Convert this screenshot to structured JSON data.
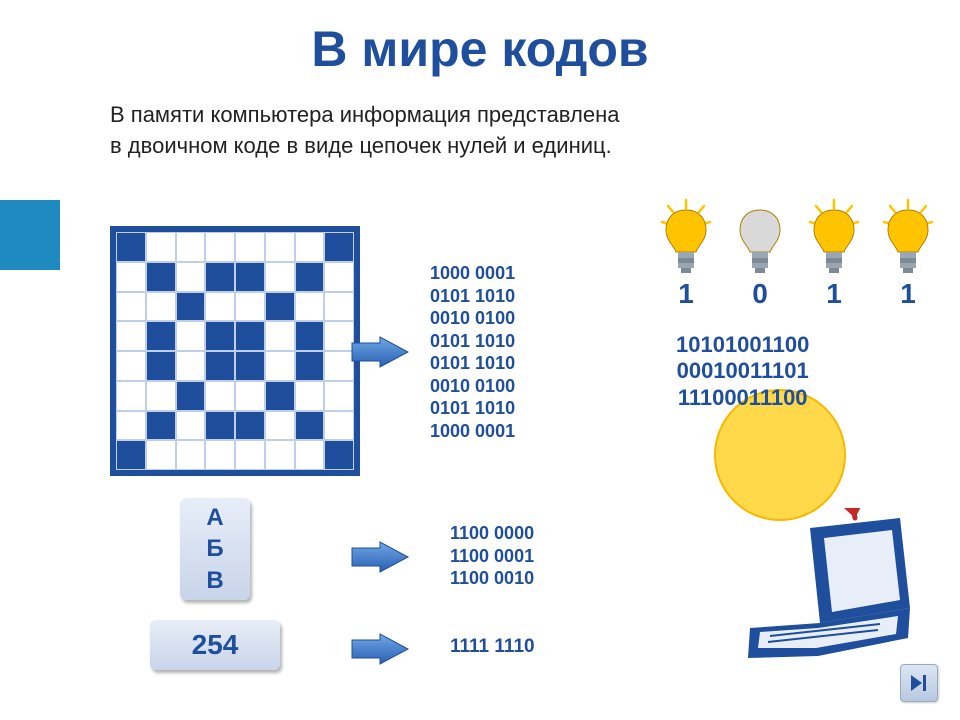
{
  "title": "В мире кодов",
  "subtitle_line1": "В памяти компьютера информация представлена",
  "subtitle_line2": "в двоичном коде в виде цепочек нулей и единиц.",
  "colors": {
    "accent": "#1f4e9c",
    "side_bar": "#1f8ac0",
    "box_grad_top": "#e8eef8",
    "box_grad_bottom": "#c8d4ea",
    "bulb_on": "#ffc400",
    "bulb_off": "#d9d9d9",
    "sun": "#ffd94a",
    "sun_stroke": "#e6a800",
    "arrow_red": "#c62828"
  },
  "font_sizes": {
    "title": 50,
    "subtitle": 22,
    "binary": 18,
    "bulb_digit": 28,
    "stack": 22,
    "num_box": 28,
    "letters": 24
  },
  "grid": {
    "size": 8,
    "cell_border": "#bfcfe8",
    "on_color": "#1f4e9c",
    "rows": [
      "10000001",
      "01011010",
      "00100100",
      "01011010",
      "01011010",
      "00100100",
      "01011010",
      "10000001"
    ]
  },
  "binary1": [
    "1000 0001",
    "0101 1010",
    "0010 0100",
    "0101 1010",
    "0101 1010",
    "0010 0100",
    "0101 1010",
    "1000 0001"
  ],
  "letters": [
    "А",
    "Б",
    "В"
  ],
  "binary2": [
    "1100 0000",
    "1100 0001",
    "1100 0010"
  ],
  "number": "254",
  "binary3": "1111 1110",
  "bulbs": [
    {
      "on": true,
      "digit": "1"
    },
    {
      "on": false,
      "digit": "0"
    },
    {
      "on": true,
      "digit": "1"
    },
    {
      "on": true,
      "digit": "1"
    }
  ],
  "bin_stack": [
    "10101001100",
    "00010011101",
    "11100011100"
  ],
  "nav_icon": "forward-icon"
}
